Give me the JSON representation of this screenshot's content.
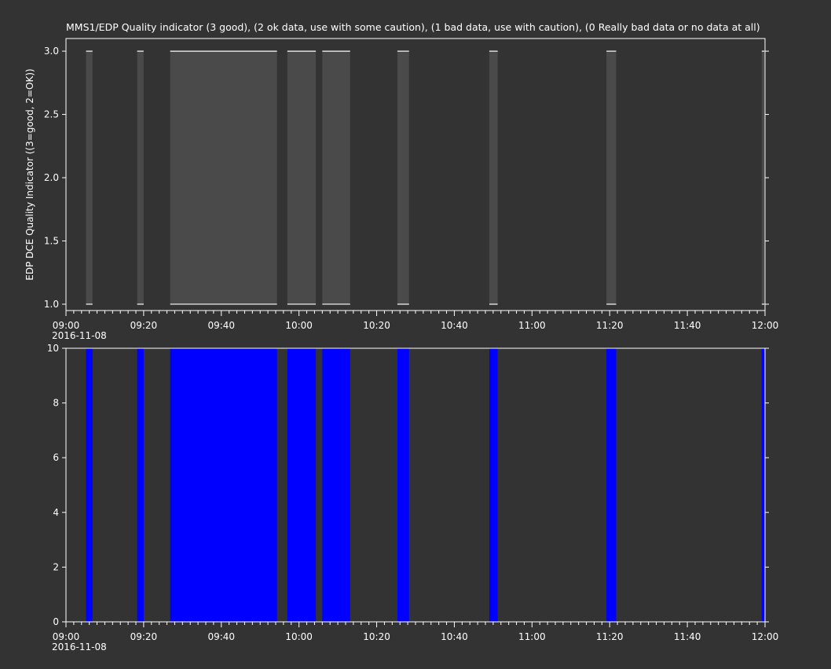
{
  "colors": {
    "background": "#333333",
    "axis": "#ffffff",
    "text": "#ffffff",
    "quality_fill": "#4a4a4a",
    "coverage_fill": "#0000ff"
  },
  "chart_data": [
    {
      "type": "area",
      "title": "MMS1/EDP  Quality indicator (3 good), (2 ok data, use with some caution), (1 bad data, use with caution), (0 Really bad data or no data at all)",
      "xlabel": "",
      "ylabel": "EDP DCE Quality Indicator ((3=good, 2=OK))",
      "date_label": "2016-11-08",
      "x_ticks": [
        "09:00",
        "09:20",
        "09:40",
        "10:00",
        "10:20",
        "10:40",
        "11:00",
        "11:20",
        "11:40",
        "12:00"
      ],
      "xlim": [
        "09:00",
        "12:00"
      ],
      "y_ticks": [
        "1.0",
        "1.5",
        "2.0",
        "2.5",
        "3.0"
      ],
      "ylim": [
        0.95,
        3.1
      ],
      "grid": false,
      "series": [
        {
          "values_note": "",
          "segments": [
            {
              "start": "09:05:10",
              "end": "09:06:50",
              "y": [
                1.0,
                3.0
              ]
            },
            {
              "start": "09:18:20",
              "end": "09:20:00",
              "y": [
                1.0,
                3.0
              ]
            },
            {
              "start": "09:26:50",
              "end": "09:54:20",
              "y": [
                1.0,
                3.0
              ]
            },
            {
              "start": "09:57:00",
              "end": "10:04:20",
              "y": [
                1.0,
                3.0
              ]
            },
            {
              "start": "10:06:00",
              "end": "10:13:10",
              "y": [
                1.0,
                3.0
              ]
            },
            {
              "start": "10:25:20",
              "end": "10:28:20",
              "y": [
                1.0,
                3.0
              ]
            },
            {
              "start": "10:49:00",
              "end": "10:51:10",
              "y": [
                1.0,
                3.0
              ]
            },
            {
              "start": "11:19:10",
              "end": "11:21:40",
              "y": [
                1.0,
                3.0
              ]
            },
            {
              "start": "11:59:10",
              "end": "11:59:50",
              "y": [
                1.0,
                3.0
              ]
            }
          ]
        }
      ]
    },
    {
      "type": "bar",
      "title": "",
      "xlabel": "",
      "ylabel": "",
      "date_label": "2016-11-08",
      "x_ticks": [
        "09:00",
        "09:20",
        "09:40",
        "10:00",
        "10:20",
        "10:40",
        "11:00",
        "11:20",
        "11:40",
        "12:00"
      ],
      "xlim": [
        "09:00",
        "12:00"
      ],
      "y_ticks": [
        "0",
        "2",
        "4",
        "6",
        "8",
        "10"
      ],
      "ylim": [
        0,
        10
      ],
      "grid": false,
      "series": [
        {
          "segments": [
            {
              "start": "09:05:10",
              "end": "09:06:50",
              "y": [
                0,
                10
              ]
            },
            {
              "start": "09:18:20",
              "end": "09:20:00",
              "y": [
                0,
                10
              ]
            },
            {
              "start": "09:26:50",
              "end": "09:54:20",
              "y": [
                0,
                10
              ]
            },
            {
              "start": "09:57:00",
              "end": "10:04:20",
              "y": [
                0,
                10
              ]
            },
            {
              "start": "10:06:00",
              "end": "10:13:10",
              "y": [
                0,
                10
              ]
            },
            {
              "start": "10:25:20",
              "end": "10:28:20",
              "y": [
                0,
                10
              ]
            },
            {
              "start": "10:49:00",
              "end": "10:51:10",
              "y": [
                0,
                10
              ]
            },
            {
              "start": "11:19:10",
              "end": "11:21:40",
              "y": [
                0,
                10
              ]
            },
            {
              "start": "11:59:10",
              "end": "11:59:50",
              "y": [
                0,
                10
              ]
            }
          ]
        }
      ]
    }
  ]
}
